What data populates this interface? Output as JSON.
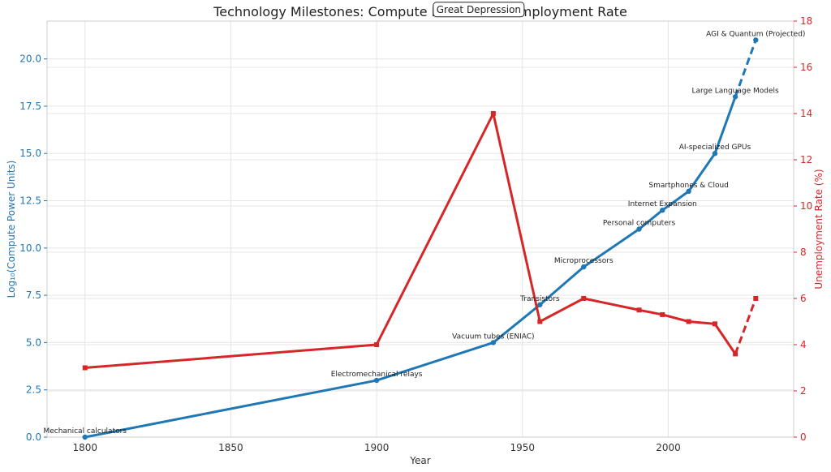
{
  "chart_data": {
    "type": "line",
    "title": "Technology Milestones: Compute Power vs Unemployment Rate",
    "xlabel": "Year",
    "ylabel_left": "Log₁₀(Compute Power Units)",
    "ylabel_right": "Unemployment Rate (%)",
    "xlim": [
      1787,
      2043
    ],
    "ylim_left": [
      0,
      22
    ],
    "ylim_right": [
      0,
      18
    ],
    "xticks": [
      1800,
      1850,
      1900,
      1950,
      2000
    ],
    "yticks_left": [
      0.0,
      2.5,
      5.0,
      7.5,
      10.0,
      12.5,
      15.0,
      17.5,
      20.0
    ],
    "yticks_right": [
      0,
      2,
      4,
      6,
      8,
      10,
      12,
      14,
      16,
      18
    ],
    "grid": true,
    "colors": {
      "compute": "#1f77b4",
      "unemployment": "#d62728",
      "grid": "#e5e5e5",
      "spine": "#cccccc"
    },
    "series": [
      {
        "key": "compute",
        "axis": "left",
        "marker": "circle",
        "x": [
          1800,
          1900,
          1940,
          1956,
          1971,
          1990,
          1998,
          2007,
          2016,
          2023,
          2030
        ],
        "y": [
          0,
          3,
          5,
          7,
          9,
          11,
          12,
          13,
          15,
          18,
          21
        ],
        "projected_from_index": 9
      },
      {
        "key": "unemployment",
        "axis": "right",
        "marker": "square",
        "x": [
          1800,
          1900,
          1940,
          1956,
          1971,
          1990,
          1998,
          2007,
          2016,
          2023,
          2030
        ],
        "y": [
          3.0,
          4.0,
          14.0,
          5.0,
          6.0,
          5.5,
          5.3,
          5.0,
          4.9,
          3.6,
          6.0
        ],
        "projected_from_index": 9
      }
    ],
    "milestones": [
      {
        "label": "Mechanical calculators",
        "x": 1800,
        "y": 0
      },
      {
        "label": "Electromechanical relays",
        "x": 1900,
        "y": 3
      },
      {
        "label": "Vacuum tubes (ENIAC)",
        "x": 1940,
        "y": 5
      },
      {
        "label": "Transistors",
        "x": 1956,
        "y": 7
      },
      {
        "label": "Microprocessors",
        "x": 1971,
        "y": 9
      },
      {
        "label": "Personal computers",
        "x": 1990,
        "y": 11
      },
      {
        "label": "Internet Expansion",
        "x": 1998,
        "y": 12
      },
      {
        "label": "Smartphones & Cloud",
        "x": 2007,
        "y": 13
      },
      {
        "label": "AI-specialized GPUs",
        "x": 2016,
        "y": 15
      },
      {
        "label": "Large Language Models",
        "x": 2023,
        "y": 18
      },
      {
        "label": "AGI & Quantum (Projected)",
        "x": 2030,
        "y": 21
      }
    ],
    "callout": {
      "label": "Great Depression",
      "x": 1935,
      "y": 18.5
    }
  }
}
